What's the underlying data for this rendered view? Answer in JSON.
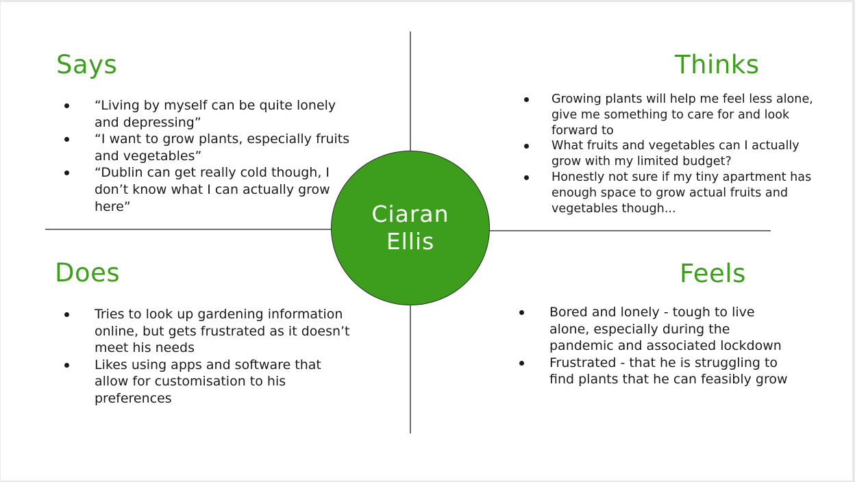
{
  "colors": {
    "accent": "#3d9e1e",
    "circle_fill": "#3d9e1e",
    "divider": "#6e6e6e",
    "text": "#1a1a1a"
  },
  "persona": {
    "first_name": "Ciaran",
    "last_name": "Ellis"
  },
  "says": {
    "title": "Says",
    "items": [
      "“Living by myself can be quite lonely and depressing”",
      "“I want to grow plants, especially fruits and vegetables”",
      "“Dublin can get really cold though, I don’t know what I can actually grow here”"
    ]
  },
  "thinks": {
    "title": "Thinks",
    "items": [
      "Growing plants will help me feel less alone, give me something to care for and look forward to",
      "What fruits and vegetables can I actually grow with my limited budget?",
      "Honestly not sure if my tiny apartment has enough space to grow actual fruits and vegetables though..."
    ]
  },
  "does": {
    "title": "Does",
    "items": [
      "Tries to look up gardening information online, but gets frustrated as it doesn’t meet his needs",
      "Likes using apps and software that allow for customisation to his preferences"
    ]
  },
  "feels": {
    "title": "Feels",
    "items": [
      "Bored and lonely - tough to live alone, especially during the pandemic and associated lockdown",
      "Frustrated - that he is struggling to find plants that he can feasibly grow"
    ]
  }
}
